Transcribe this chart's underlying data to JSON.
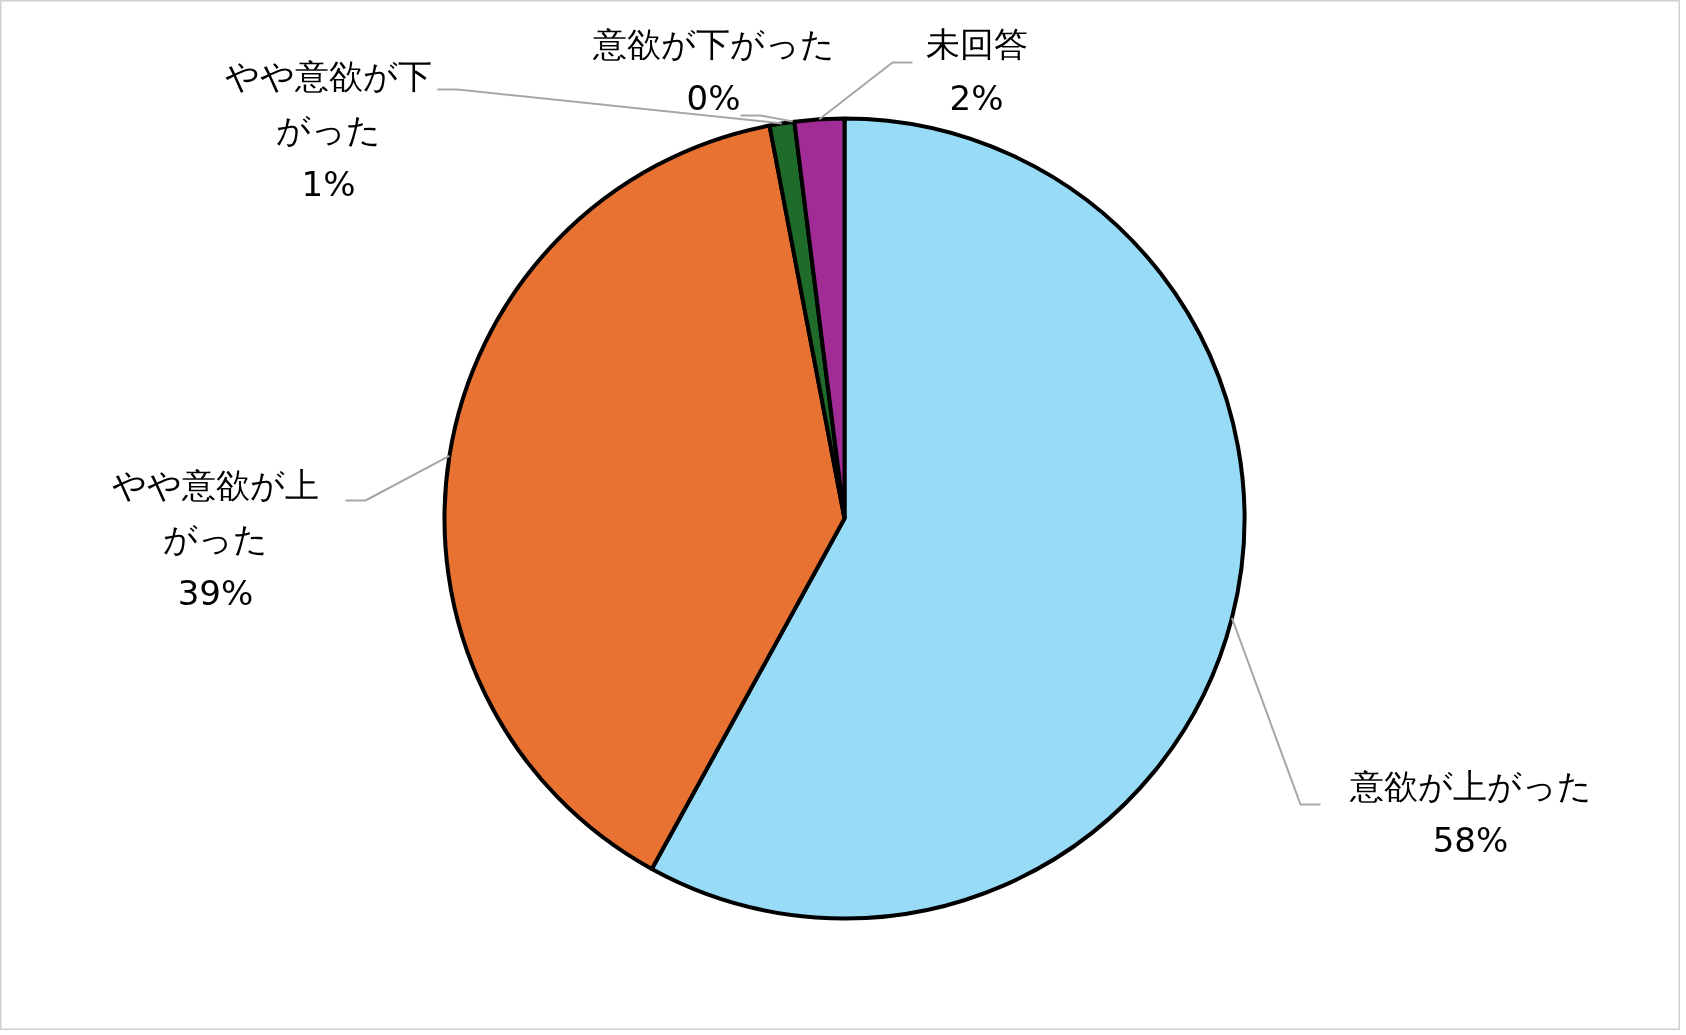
{
  "chart_data": {
    "type": "pie",
    "categories": [
      "意欲が上がった",
      "やや意欲が上がった",
      "やや意欲が下がった",
      "意欲が下がった",
      "未回答"
    ],
    "values": [
      58,
      39,
      1,
      0,
      2
    ],
    "value_labels": [
      "58%",
      "39%",
      "1%",
      "0%",
      "2%"
    ],
    "colors": [
      "#97dbf7",
      "#e87232",
      "#1e6b2a",
      "#1e4f8a",
      "#a12c96"
    ]
  }
}
